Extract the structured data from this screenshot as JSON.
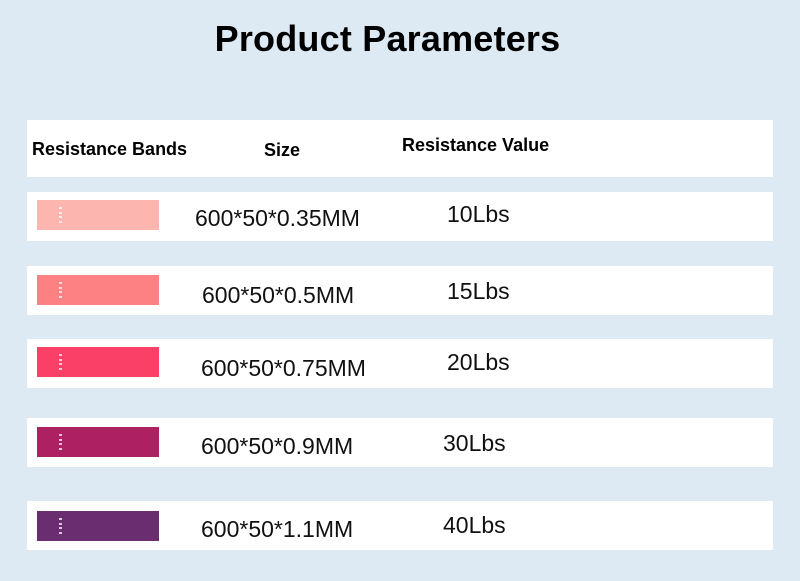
{
  "title": "Product Parameters",
  "headers": {
    "bands": "Resistance Bands",
    "size": "Size",
    "value": "Resistance Value"
  },
  "rows": [
    {
      "size": "600*50*0.35MM",
      "value": "10Lbs",
      "color": "#fdb5b0"
    },
    {
      "size": "600*50*0.5MM",
      "value": "15Lbs",
      "color": "#fd8082"
    },
    {
      "size": "600*50*0.75MM",
      "value": "20Lbs",
      "color": "#fb4068"
    },
    {
      "size": "600*50*0.9MM",
      "value": "30Lbs",
      "color": "#ad2163"
    },
    {
      "size": "600*50*1.1MM",
      "value": "40Lbs",
      "color": "#6a2d6f"
    }
  ]
}
